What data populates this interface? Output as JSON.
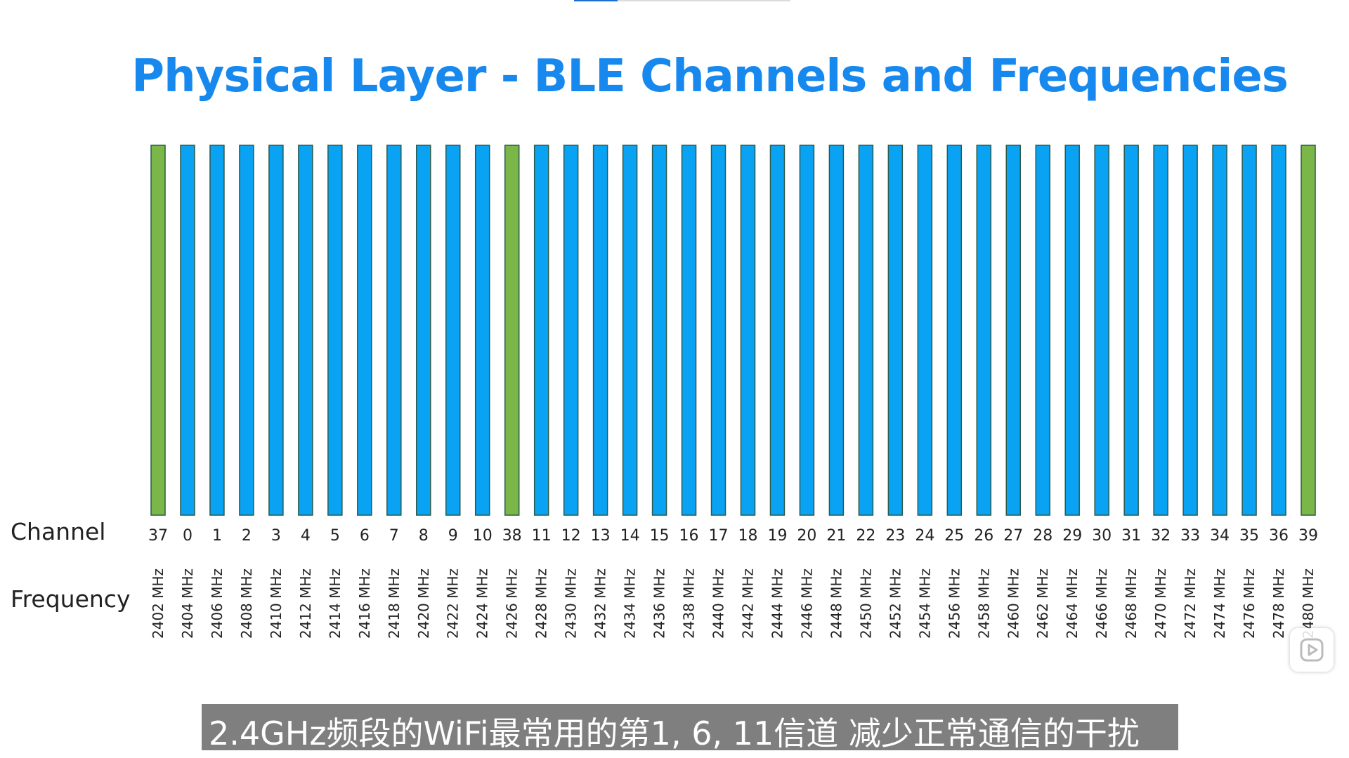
{
  "colors": {
    "title": "#1688ee",
    "data_channel": "#0aa3f4",
    "advertising_channel": "#7ab648",
    "bar_stroke": "#2a5a4a",
    "subtitle_bg": "#7f7f7f"
  },
  "player_progress": 0.2,
  "row_labels": {
    "channel": "Channel",
    "frequency": "Frequency"
  },
  "subtitle": "2.4GHz频段的WiFi最常用的第1, 6, 11信道 减少正常通信的干扰",
  "icons": {
    "player": "play-icon"
  },
  "chart_data": {
    "type": "bar",
    "title": "Physical Layer - BLE Channels and Frequencies",
    "xlabel": "",
    "ylabel": "",
    "channels": [
      "37",
      "0",
      "1",
      "2",
      "3",
      "4",
      "5",
      "6",
      "7",
      "8",
      "9",
      "10",
      "38",
      "11",
      "12",
      "13",
      "14",
      "15",
      "16",
      "17",
      "18",
      "19",
      "20",
      "21",
      "22",
      "23",
      "24",
      "25",
      "26",
      "27",
      "28",
      "29",
      "30",
      "31",
      "32",
      "33",
      "34",
      "35",
      "36",
      "39"
    ],
    "frequencies": [
      "2402 MHz",
      "2404 MHz",
      "2406 MHz",
      "2408 MHz",
      "2410 MHz",
      "2412 MHz",
      "2414 MHz",
      "2416 MHz",
      "2418 MHz",
      "2420 MHz",
      "2422 MHz",
      "2424 MHz",
      "2426 MHz",
      "2428 MHz",
      "2430 MHz",
      "2432 MHz",
      "2434 MHz",
      "2436 MHz",
      "2438 MHz",
      "2440 MHz",
      "2442 MHz",
      "2444 MHz",
      "2446 MHz",
      "2448 MHz",
      "2450 MHz",
      "2452 MHz",
      "2454 MHz",
      "2456 MHz",
      "2458 MHz",
      "2460 MHz",
      "2462 MHz",
      "2464 MHz",
      "2466 MHz",
      "2468 MHz",
      "2470 MHz",
      "2472 MHz",
      "2474 MHz",
      "2476 MHz",
      "2478 MHz",
      "2480 MHz"
    ],
    "advertising_channels": [
      "37",
      "38",
      "39"
    ],
    "values": [
      1,
      1,
      1,
      1,
      1,
      1,
      1,
      1,
      1,
      1,
      1,
      1,
      1,
      1,
      1,
      1,
      1,
      1,
      1,
      1,
      1,
      1,
      1,
      1,
      1,
      1,
      1,
      1,
      1,
      1,
      1,
      1,
      1,
      1,
      1,
      1,
      1,
      1,
      1,
      1
    ],
    "ylim": [
      0,
      1
    ],
    "grid": false
  }
}
